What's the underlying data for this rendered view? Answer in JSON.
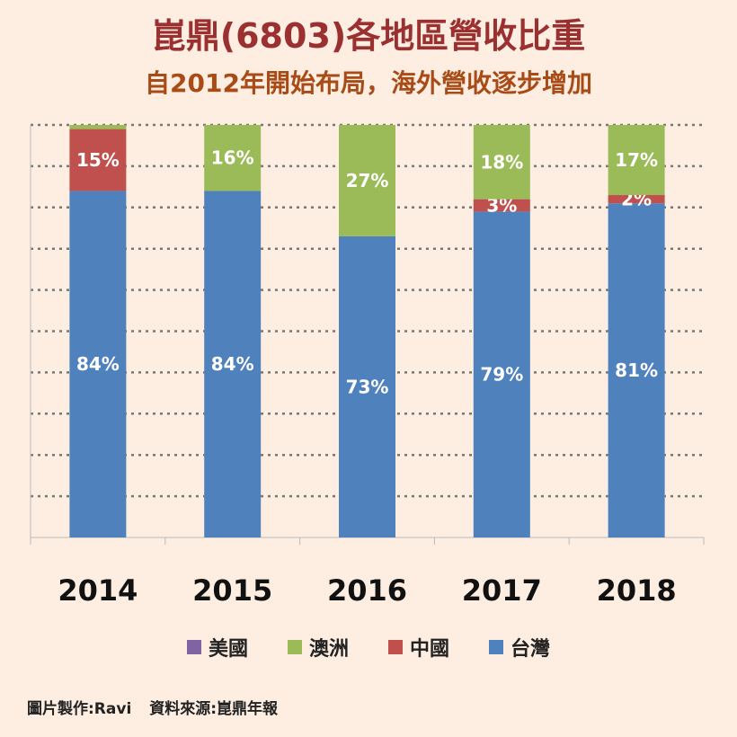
{
  "title": "崑鼎(6803)各地區營收比重",
  "subtitle": "自2012年開始布局，海外營收逐步增加",
  "chart_data": {
    "type": "bar",
    "stacked": true,
    "percent_stacked": true,
    "categories": [
      "2014",
      "2015",
      "2016",
      "2017",
      "2018"
    ],
    "series": [
      {
        "name": "台灣",
        "color": "#4f81bd",
        "values": [
          84,
          84,
          73,
          79,
          81
        ],
        "labels": [
          "84%",
          "84%",
          "73%",
          "79%",
          "81%"
        ]
      },
      {
        "name": "中國",
        "color": "#c0504d",
        "values": [
          15,
          0,
          0,
          3,
          2
        ],
        "labels": [
          "15%",
          "",
          "",
          "3%",
          "2%"
        ]
      },
      {
        "name": "澳洲",
        "color": "#9bbb59",
        "values": [
          1,
          16,
          27,
          18,
          17
        ],
        "labels": [
          "",
          "16%",
          "27%",
          "18%",
          "17%"
        ]
      },
      {
        "name": "美國",
        "color": "#8064a2",
        "values": [
          0,
          0,
          0,
          0,
          0
        ],
        "labels": [
          "",
          "",
          "",
          "",
          ""
        ]
      }
    ],
    "ylim": [
      0,
      100
    ],
    "grid": true,
    "legend": [
      "美國",
      "澳洲",
      "中國",
      "台灣"
    ],
    "legend_position": "bottom"
  },
  "footer": {
    "author": "圖片製作:Ravi",
    "source": "資料來源:崑鼎年報"
  }
}
